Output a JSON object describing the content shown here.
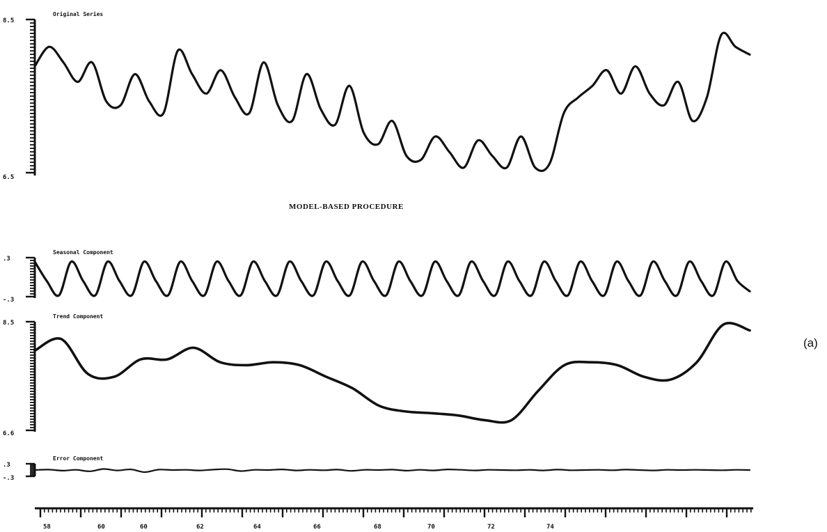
{
  "main_title": "MODEL-BASED PROCEDURE",
  "panel_label": "(a)",
  "chart_data": [
    {
      "type": "line",
      "title": "Original Series",
      "y_tick_labels": [
        "8.5",
        "6.5"
      ],
      "ylim": [
        6.5,
        8.5
      ],
      "series": [
        {
          "values": [
            7.9,
            8.15,
            7.95,
            7.7,
            7.95,
            7.45,
            7.4,
            7.8,
            7.45,
            7.3,
            8.1,
            7.8,
            7.55,
            7.85,
            7.5,
            7.3,
            7.95,
            7.4,
            7.2,
            7.8,
            7.35,
            7.15,
            7.65,
            7.05,
            6.9,
            7.2,
            6.75,
            6.7,
            7.0,
            6.8,
            6.6,
            6.95,
            6.75,
            6.6,
            7.0,
            6.6,
            6.65,
            7.3,
            7.5,
            7.65,
            7.85,
            7.55,
            7.9,
            7.55,
            7.4,
            7.7,
            7.2,
            7.5,
            8.3,
            8.15,
            8.05
          ]
        }
      ],
      "grid": false
    },
    {
      "type": "line",
      "title": "Seasonal Component",
      "y_tick_labels": [
        ".3",
        "-.3"
      ],
      "ylim": [
        -0.3,
        0.3
      ],
      "series": [
        {
          "values": [
            0.24,
            -0.05,
            -0.26,
            0.24,
            -0.05,
            -0.26,
            0.24,
            -0.05,
            -0.26,
            0.24,
            -0.05,
            -0.26,
            0.24,
            -0.05,
            -0.26,
            0.24,
            -0.05,
            -0.26,
            0.24,
            -0.05,
            -0.26,
            0.24,
            -0.05,
            -0.26,
            0.24,
            -0.05,
            -0.26,
            0.24,
            -0.05,
            -0.26,
            0.24,
            -0.05,
            -0.26,
            0.24,
            -0.05,
            -0.26,
            0.24,
            -0.05,
            -0.26,
            0.24,
            -0.05,
            -0.26,
            0.24,
            -0.05,
            -0.26,
            0.24,
            -0.05,
            -0.26,
            0.24,
            -0.05,
            -0.26,
            0.24,
            -0.05,
            -0.26,
            0.24,
            -0.05,
            -0.26,
            0.24,
            -0.05,
            -0.2
          ]
        }
      ],
      "grid": false
    },
    {
      "type": "line",
      "title": "Trend Component",
      "y_tick_labels": [
        "8.5",
        "6.6"
      ],
      "ylim": [
        6.6,
        8.5
      ],
      "series": [
        {
          "values": [
            8.0,
            8.2,
            7.6,
            7.55,
            7.85,
            7.85,
            8.05,
            7.8,
            7.75,
            7.8,
            7.75,
            7.55,
            7.35,
            7.05,
            6.95,
            6.92,
            6.88,
            6.8,
            6.8,
            7.3,
            7.75,
            7.8,
            7.75,
            7.55,
            7.5,
            7.8,
            8.45,
            8.35
          ]
        }
      ],
      "grid": false
    },
    {
      "type": "line",
      "title": "Error Component",
      "y_tick_labels": [
        ".3",
        "-.3"
      ],
      "ylim": [
        -0.3,
        0.3
      ],
      "series": [
        {
          "values": [
            0,
            0.02,
            -0.03,
            0.01,
            -0.06,
            0.05,
            -0.02,
            0.03,
            -0.1,
            0.02,
            0,
            0.01,
            -0.02,
            0.02,
            0.04,
            -0.05,
            0.01,
            0,
            0.03,
            -0.02,
            0.01,
            -0.01,
            0.02,
            -0.04,
            0.01,
            0,
            0.02,
            -0.03,
            0.01,
            -0.02,
            0.03,
            0.01,
            -0.02,
            0.01,
            0,
            -0.01,
            0.01,
            -0.02,
            0.02,
            -0.01,
            0,
            0.01,
            -0.01,
            0.02,
            0,
            -0.02,
            0.01,
            0,
            0.01,
            0,
            -0.01,
            0.01,
            0
          ]
        }
      ],
      "grid": false
    }
  ],
  "x_axis": {
    "tick_labels": [
      "58",
      "60",
      "60",
      "62",
      "64",
      "66",
      "68",
      "70",
      "72",
      "74"
    ]
  }
}
